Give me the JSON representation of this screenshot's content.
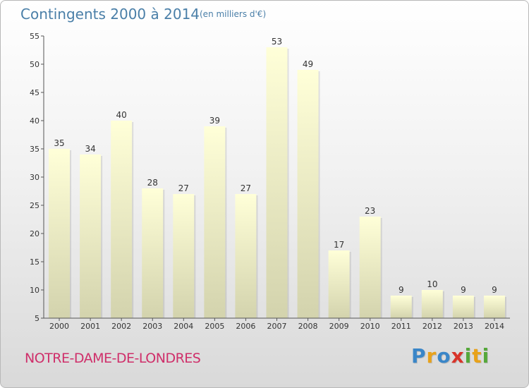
{
  "header": {
    "title": "Contingents 2000 à 2014",
    "subtitle": "(en milliers d'€)"
  },
  "footer": {
    "place": "NOTRE-DAME-DE-LONDRES",
    "logo_letters": [
      "P",
      "r",
      "o",
      "x",
      "i",
      "t",
      "i"
    ],
    "logo_colors": [
      "#3a86c8",
      "#e8a21b",
      "#3a86c8",
      "#d8342a",
      "#55a83a",
      "#e8a21b",
      "#55a83a"
    ]
  },
  "colors": {
    "axis_text": "#333333",
    "bar_top": "#ffffd8",
    "bar_bottom": "#d3d3ad",
    "title": "#4a7fa8",
    "place": "#cf2f6a"
  },
  "chart_data": {
    "type": "bar",
    "categories": [
      "2000",
      "2001",
      "2002",
      "2003",
      "2004",
      "2005",
      "2006",
      "2007",
      "2008",
      "2009",
      "2010",
      "2011",
      "2012",
      "2013",
      "2014"
    ],
    "values": [
      35,
      34,
      40,
      28,
      27,
      39,
      27,
      53,
      49,
      17,
      23,
      9,
      10,
      9,
      9
    ],
    "ylim": [
      5,
      55
    ],
    "yticks": [
      5,
      10,
      15,
      20,
      25,
      30,
      35,
      40,
      45,
      50,
      55
    ],
    "grid": false,
    "data_labels": true
  }
}
